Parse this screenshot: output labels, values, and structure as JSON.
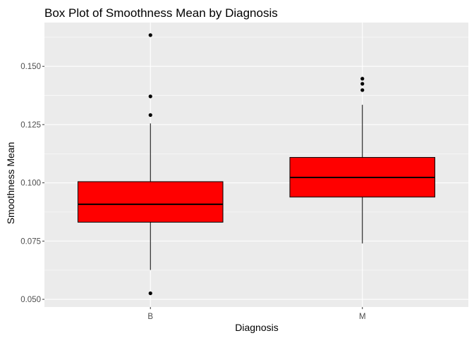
{
  "chart_data": {
    "type": "boxplot",
    "title": "Box Plot of Smoothness Mean by Diagnosis",
    "xlabel": "Diagnosis",
    "ylabel": "Smoothness Mean",
    "categories": [
      "B",
      "M"
    ],
    "ylim": [
      0.0467,
      0.1688
    ],
    "yticks": [
      0.05,
      0.075,
      0.1,
      0.125,
      0.15
    ],
    "ytick_labels": [
      "0.050",
      "0.075",
      "0.100",
      "0.125",
      "0.150"
    ],
    "boxes": [
      {
        "category": "B",
        "whisker_low": 0.0626,
        "q1": 0.0831,
        "median": 0.0908,
        "q3": 0.1005,
        "whisker_high": 0.1255,
        "outliers": [
          0.1634,
          0.1371,
          0.1291,
          0.0526
        ]
      },
      {
        "category": "M",
        "whisker_low": 0.074,
        "q1": 0.0939,
        "median": 0.1023,
        "q3": 0.1109,
        "whisker_high": 0.1335,
        "outliers": [
          0.1447,
          0.1425,
          0.1398
        ]
      }
    ],
    "box_fill": "#ff0000",
    "panel_background": "#ebebeb",
    "grid_color": "#ffffff",
    "grid": true,
    "legend": "none"
  }
}
